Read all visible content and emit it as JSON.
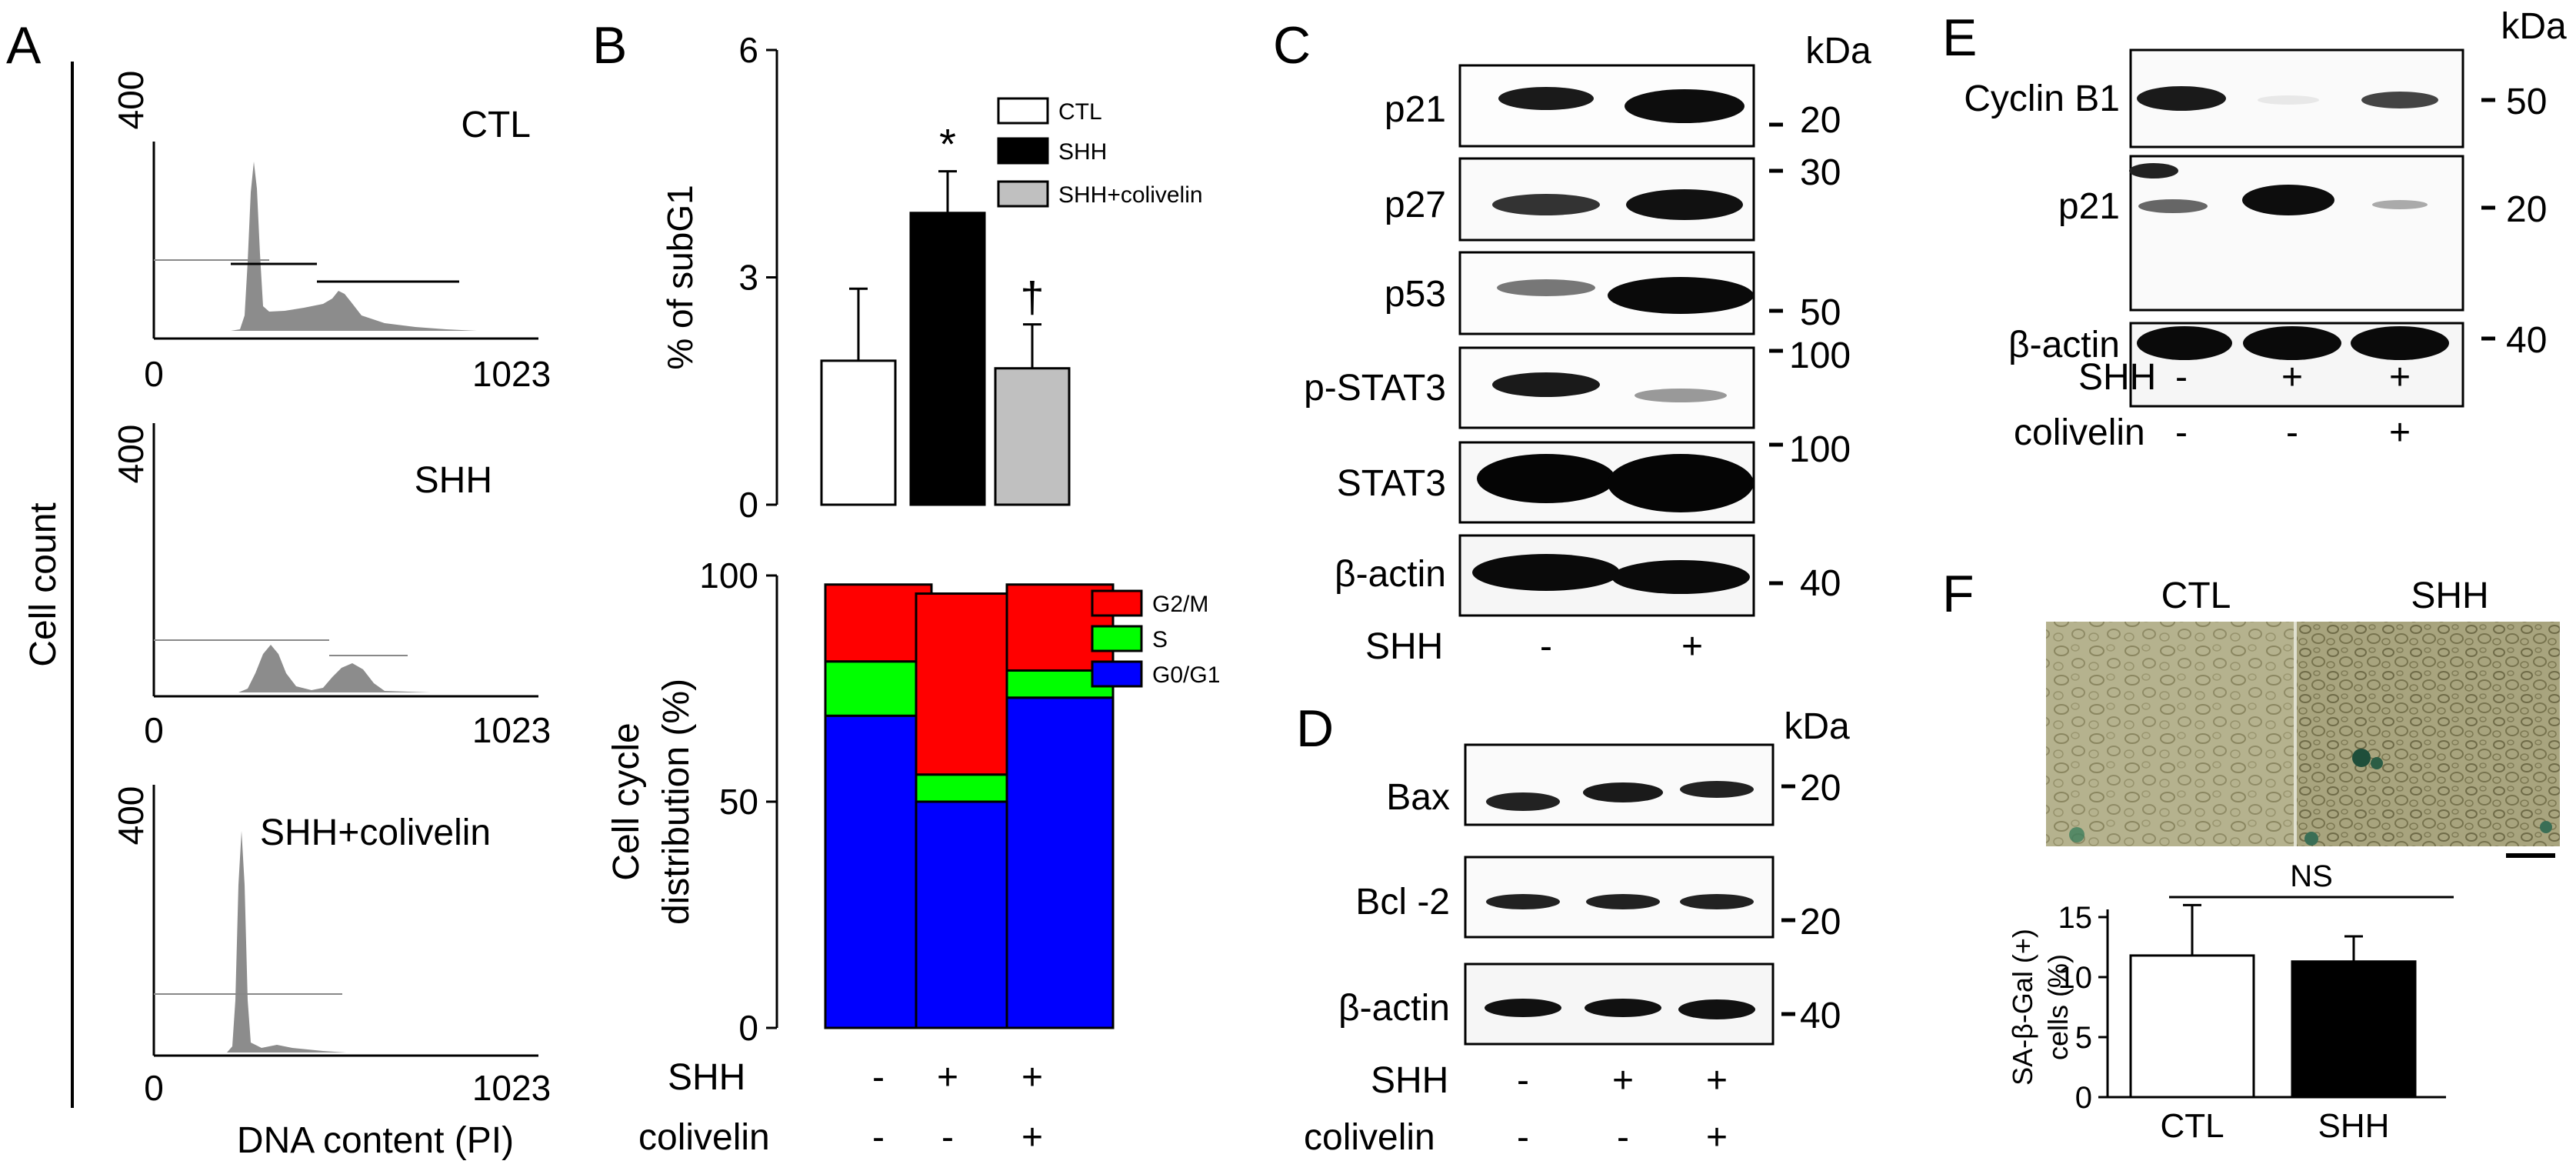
{
  "panels": {
    "a": "A",
    "b": "B",
    "c": "C",
    "d": "D",
    "e": "E",
    "f": "F"
  },
  "panel_a": {
    "ylabel": "Cell count",
    "xlabel": "DNA content (PI)",
    "histograms": [
      {
        "condition": "CTL",
        "ymax": "400",
        "xmin": "0",
        "xmax": "1023"
      },
      {
        "condition": "SHH",
        "ymax": "400",
        "xmin": "0",
        "xmax": "1023"
      },
      {
        "condition": "SHH+colivelin",
        "ymax": "400",
        "xmin": "0",
        "xmax": "1023"
      }
    ]
  },
  "chart_data": [
    {
      "type": "bar",
      "id": "subg1",
      "ylabel": "% of subG1",
      "ylim": [
        0,
        6
      ],
      "yticks": [
        "0",
        "3",
        "6"
      ],
      "categories": [
        "CTL",
        "SHH",
        "SHH+colivelin"
      ],
      "values": [
        1.9,
        3.85,
        1.8
      ],
      "errors": [
        0.95,
        0.55,
        0.58
      ],
      "colors": [
        "#ffffff",
        "#000000",
        "#c0c0c0"
      ],
      "annotations": [
        "",
        "*",
        "†"
      ],
      "legend": [
        "CTL",
        "SHH",
        "SHH+colivelin"
      ]
    },
    {
      "type": "bar",
      "id": "cellcycle",
      "stacked": true,
      "ylabel_lines": [
        "Cell cycle",
        "distribution (%)"
      ],
      "ylim": [
        0,
        100
      ],
      "yticks": [
        "0",
        "50",
        "100"
      ],
      "categories": [
        "CTL",
        "SHH",
        "SHH+colivelin"
      ],
      "series": [
        {
          "name": "G0/G1",
          "color": "#0000ff",
          "values": [
            69,
            50,
            73
          ]
        },
        {
          "name": "S",
          "color": "#00ff00",
          "values": [
            12,
            6,
            6
          ]
        },
        {
          "name": "G2/M",
          "color": "#ff0000",
          "values": [
            17,
            40,
            19
          ]
        }
      ],
      "legend": [
        "G2/M",
        "S",
        "G0/G1"
      ]
    },
    {
      "type": "bar",
      "id": "sagal",
      "ylabel_lines": [
        "SA-β-Gal (+)",
        "cells (%)"
      ],
      "ylim": [
        0,
        15
      ],
      "yticks": [
        "0",
        "5",
        "10",
        "15"
      ],
      "categories": [
        "CTL",
        "SHH"
      ],
      "values": [
        11.8,
        11.3
      ],
      "errors": [
        4.2,
        2.1
      ],
      "colors": [
        "#ffffff",
        "#000000"
      ],
      "annotation": "NS"
    }
  ],
  "treatments_b": {
    "shh_label": "SHH",
    "col_label": "colivelin",
    "shh": [
      "-",
      "+",
      "+"
    ],
    "col": [
      "-",
      "-",
      "+"
    ]
  },
  "panel_c": {
    "unit": "kDa",
    "blots": [
      {
        "label": "p21",
        "marker": "20"
      },
      {
        "label": "p27",
        "marker": "30"
      },
      {
        "label": "p53",
        "marker": "50"
      },
      {
        "label": "p-STAT3",
        "marker": "100"
      },
      {
        "label": "STAT3",
        "marker": "100"
      },
      {
        "label": "β-actin",
        "marker": "40"
      }
    ],
    "shh_label": "SHH",
    "shh": [
      "-",
      "+"
    ]
  },
  "panel_d": {
    "unit": "kDa",
    "blots": [
      {
        "label": "Bax",
        "marker": "20"
      },
      {
        "label": "Bcl -2",
        "marker": "20"
      },
      {
        "label": "β-actin",
        "marker": "40"
      }
    ],
    "shh_label": "SHH",
    "col_label": "colivelin",
    "shh": [
      "-",
      "+",
      "+"
    ],
    "col": [
      "-",
      "-",
      "+"
    ]
  },
  "panel_e": {
    "unit": "kDa",
    "blots": [
      {
        "label": "Cyclin B1",
        "marker": "50"
      },
      {
        "label": "p21",
        "marker": "20"
      },
      {
        "label": "β-actin",
        "marker": "40"
      }
    ],
    "shh_label": "SHH",
    "col_label": "colivelin",
    "shh": [
      "-",
      "+",
      "+"
    ],
    "col": [
      "-",
      "-",
      "+"
    ]
  },
  "panel_f": {
    "image_labels": [
      "CTL",
      "SHH"
    ]
  }
}
